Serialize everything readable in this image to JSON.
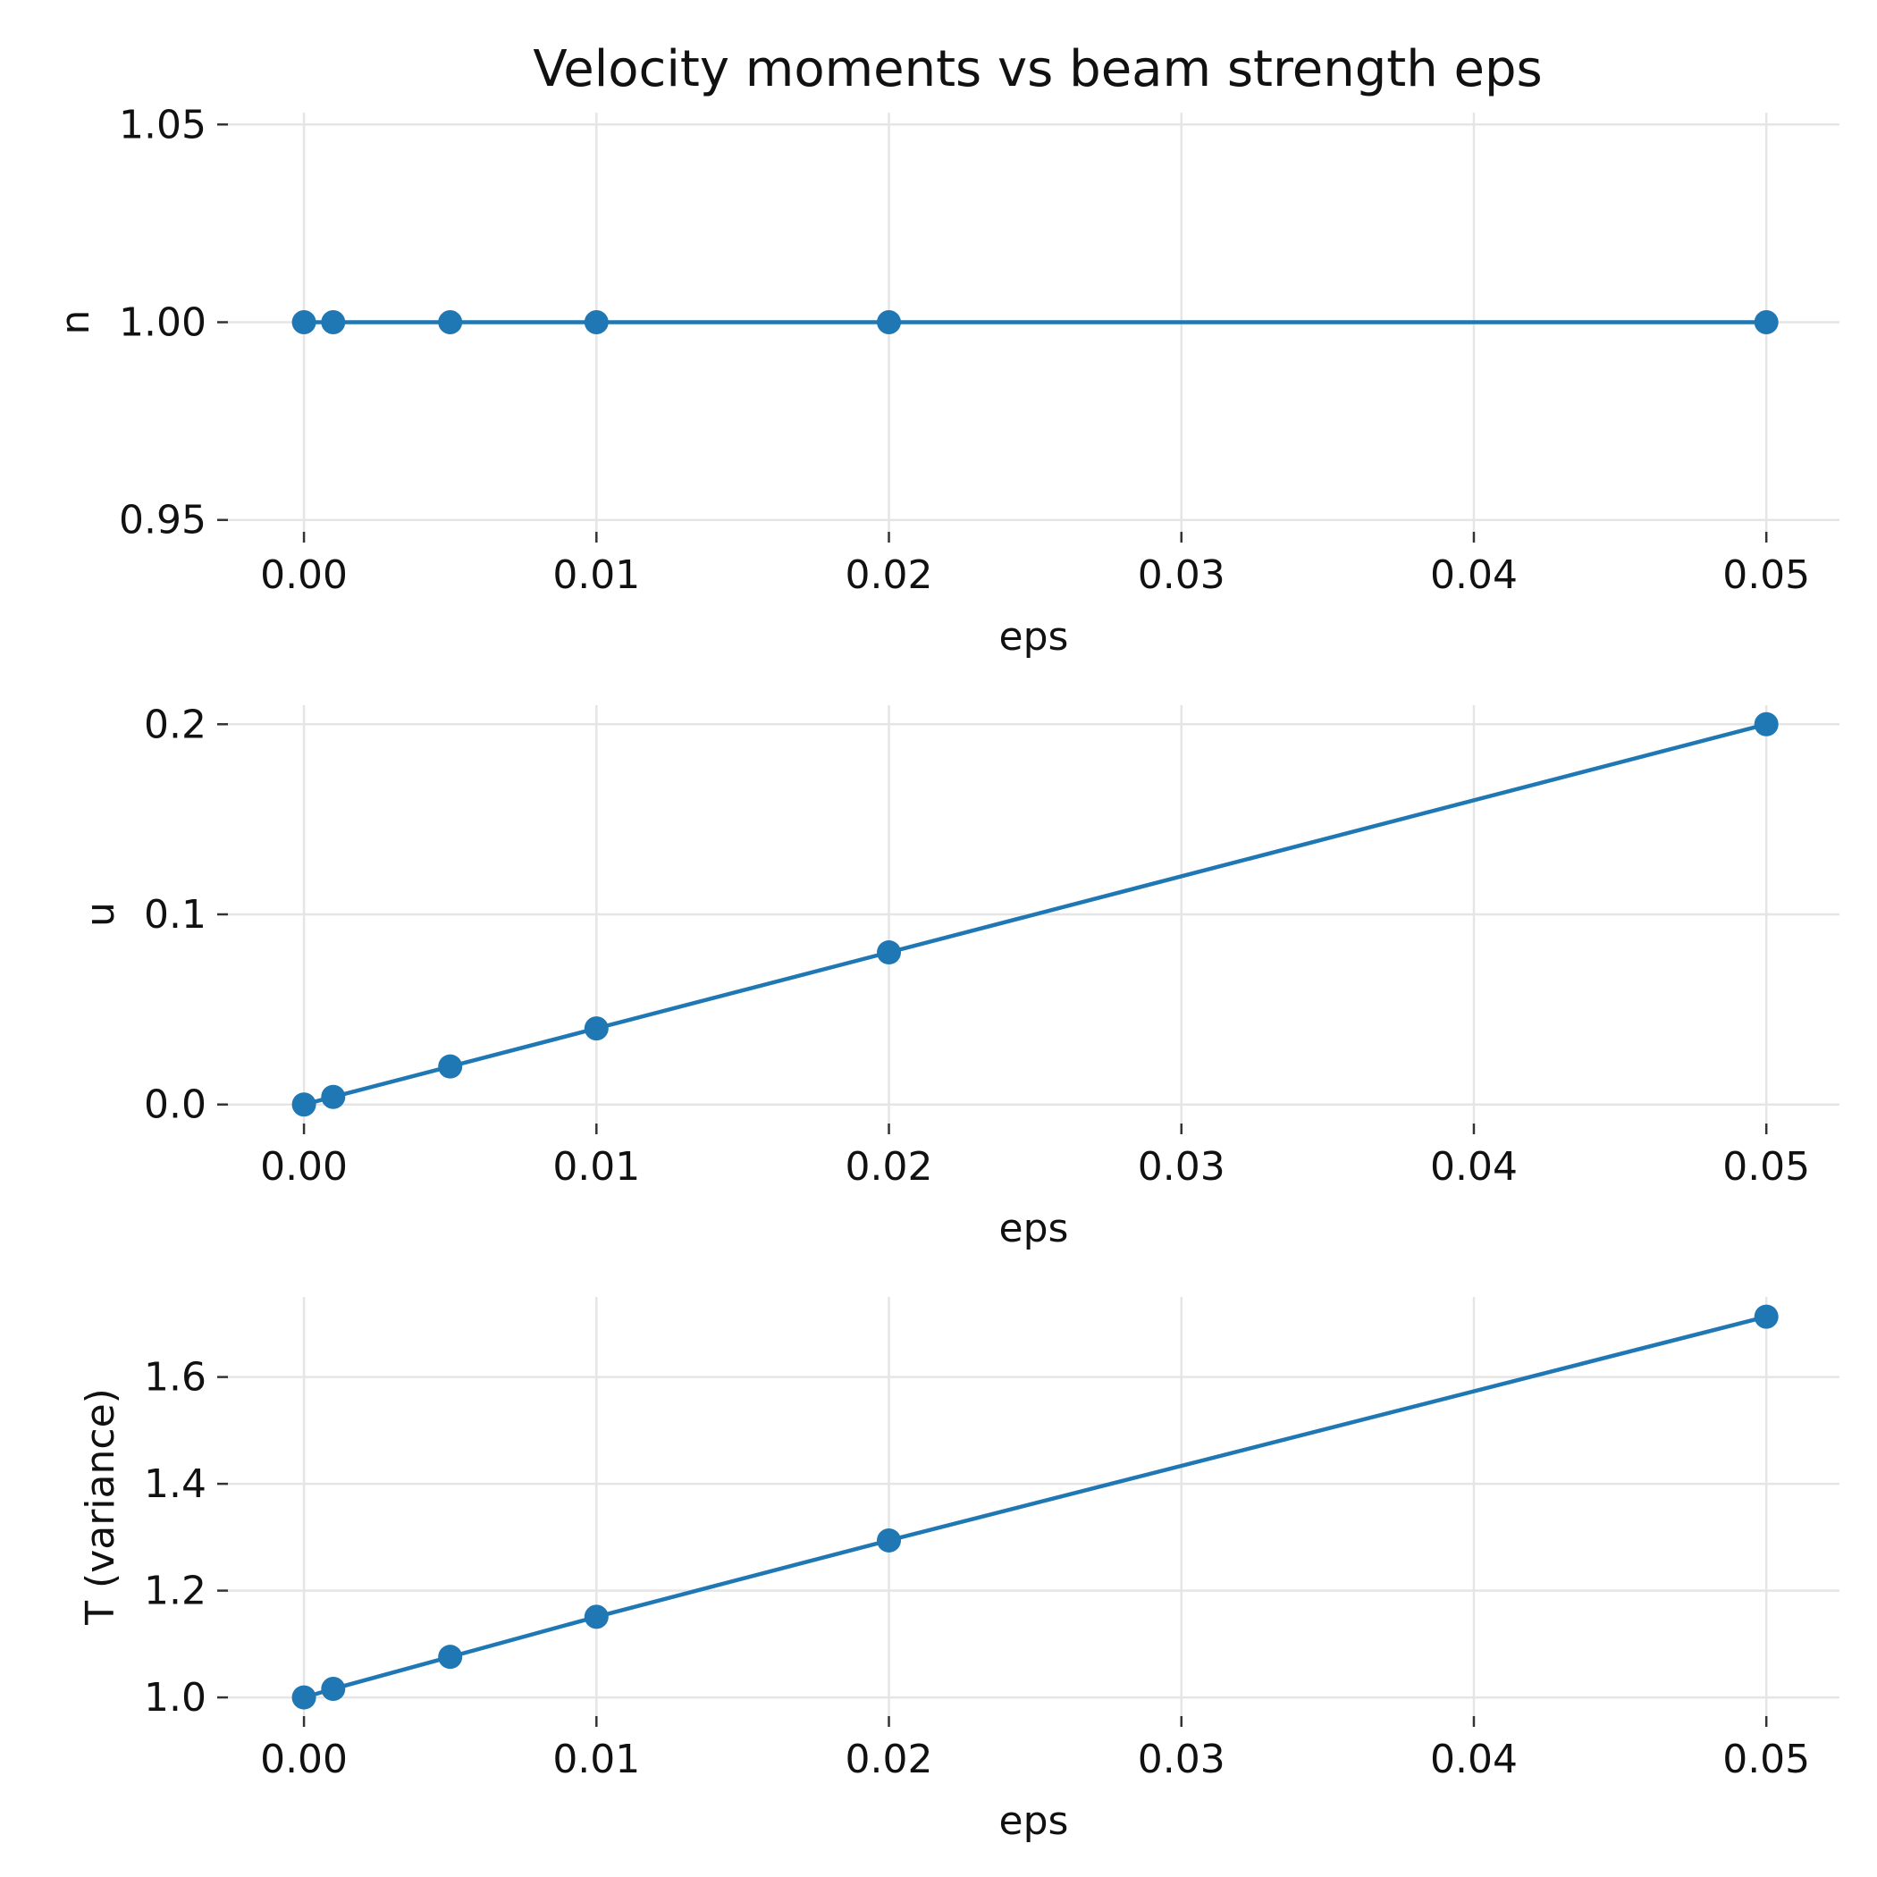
{
  "title": "Velocity moments vs beam strength eps",
  "colors": {
    "series": "#1f77b4",
    "grid": "#e5e5e5",
    "tick": "#333333"
  },
  "chart_data": [
    {
      "type": "line",
      "x": [
        0.0,
        0.001,
        0.005,
        0.01,
        0.02,
        0.05
      ],
      "series": [
        {
          "values": [
            1.0,
            1.0,
            1.0,
            1.0,
            1.0,
            1.0
          ]
        }
      ],
      "xlabel": "eps",
      "ylabel": "n",
      "xlim": [
        -0.0026,
        0.0525
      ],
      "ylim": [
        0.947,
        1.053
      ],
      "xticks": [
        "0.00",
        "0.01",
        "0.02",
        "0.03",
        "0.04",
        "0.05"
      ],
      "yticks": [
        "0.95",
        "1.00",
        "1.05"
      ],
      "grid": true,
      "markers": true
    },
    {
      "type": "line",
      "x": [
        0.0,
        0.001,
        0.005,
        0.01,
        0.02,
        0.05
      ],
      "series": [
        {
          "values": [
            0.0,
            0.004,
            0.02,
            0.04,
            0.08,
            0.2
          ]
        }
      ],
      "xlabel": "eps",
      "ylabel": "u",
      "xlim": [
        -0.0026,
        0.0525
      ],
      "ylim": [
        -0.01,
        0.21
      ],
      "xticks": [
        "0.00",
        "0.01",
        "0.02",
        "0.03",
        "0.04",
        "0.05"
      ],
      "yticks": [
        "0.0",
        "0.1",
        "0.2"
      ],
      "grid": true,
      "markers": true
    },
    {
      "type": "line",
      "x": [
        0.0,
        0.001,
        0.005,
        0.01,
        0.02,
        0.05
      ],
      "series": [
        {
          "values": [
            1.0,
            1.016,
            1.076,
            1.151,
            1.294,
            1.713
          ]
        }
      ],
      "xlabel": "eps",
      "ylabel": "T (variance)",
      "xlim": [
        -0.0026,
        0.0525
      ],
      "ylim": [
        0.965,
        1.75
      ],
      "xticks": [
        "0.00",
        "0.01",
        "0.02",
        "0.03",
        "0.04",
        "0.05"
      ],
      "yticks": [
        "1.0",
        "1.2",
        "1.4",
        "1.6"
      ],
      "grid": true,
      "markers": true
    }
  ]
}
